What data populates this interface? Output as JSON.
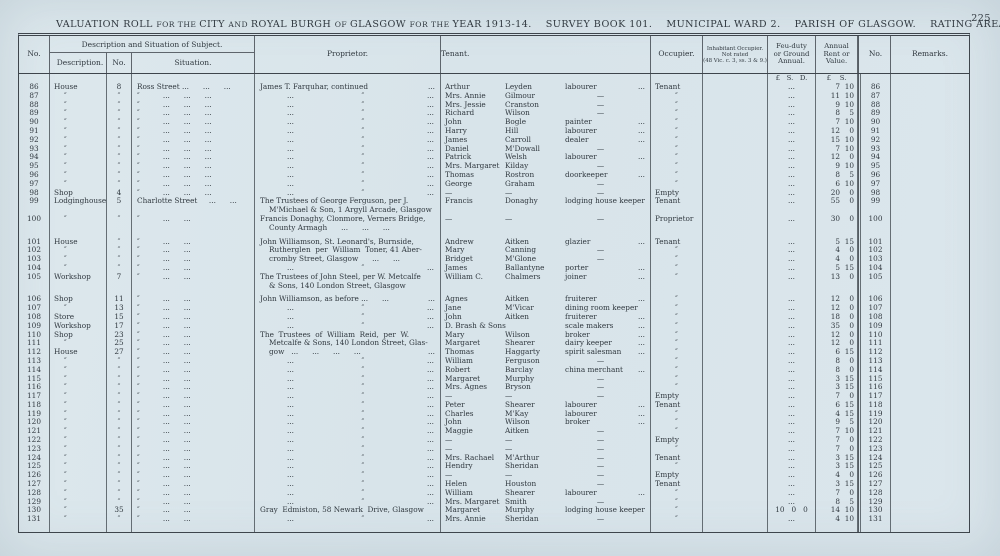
{
  "title": {
    "segments": [
      {
        "t": "VALUATION ROLL "
      },
      {
        "t": "FOR THE ",
        "sm": 1
      },
      {
        "t": "CITY "
      },
      {
        "t": "AND ",
        "sm": 1
      },
      {
        "t": "ROYAL BURGH "
      },
      {
        "t": "OF ",
        "sm": 1
      },
      {
        "t": "GLASGOW "
      },
      {
        "t": "FOR THE ",
        "sm": 1
      },
      {
        "t": "YEAR 1913-14."
      },
      {
        "t": "    SURVEY BOOK 101."
      },
      {
        "t": "    MUNICIPAL WARD 2."
      },
      {
        "t": "    PARISH OF GLASGOW."
      },
      {
        "t": "    RATING AREA—GLASGOW"
      }
    ],
    "page_number": "225"
  },
  "table": {
    "headers": {
      "no_left": "No.",
      "desc_group": "Description and Situation of Subject.",
      "description": "Description.",
      "no_mid": "No.",
      "situation": "Situation.",
      "proprietor": "Proprietor.",
      "tenant": "Tenant.",
      "occupier": "Occupier.",
      "inhabitant": [
        "Inhabitant Occupier.",
        "Not rated",
        "(48 Vic. c. 3, ss. 3 & 9.)"
      ],
      "feu": [
        "Feu-duty",
        "or Ground",
        "Annual."
      ],
      "annual": [
        "Annual",
        "Rent or",
        "Value."
      ],
      "no_right": "No.",
      "remarks": "Remarks."
    },
    "currency_row": {
      "feu": "£   S.   D.",
      "annual": "£    S."
    },
    "ditto": "″",
    "feu_default": "...",
    "prop_ditto": {
      "l": "...",
      "c": "″",
      "r": "..."
    },
    "sit_patterns": {
      "d3": "″          ...      ...      ...",
      "d2": "″          ...      ..."
    },
    "rows": [
      {
        "n": "86",
        "d": "House",
        "dn": "8",
        "s": "Ross Street ...      ...      ...",
        "p": {
          "l": "James T. Farquhar, continued",
          "r": "..."
        },
        "t1": "Arthur",
        "t2": "Leyden",
        "t3": "labourer",
        "t3d": 1,
        "o": "Tenant",
        "vp": "7",
        "vs": "10"
      },
      {
        "n": "87",
        "d": "″",
        "dn": "″",
        "s": "d3",
        "p": "d",
        "t1": "Mrs. Annie",
        "t2": "Gilmour",
        "t3": "—",
        "o": "″",
        "vp": "11",
        "vs": "10"
      },
      {
        "n": "88",
        "d": "″",
        "dn": "″",
        "s": "d3",
        "p": "d",
        "t1": "Mrs. Jessie",
        "t2": "Cranston",
        "t3": "—",
        "o": "″",
        "vp": "9",
        "vs": "10"
      },
      {
        "n": "89",
        "d": "″",
        "dn": "″",
        "s": "d3",
        "p": "d",
        "t1": "Richard",
        "t2": "Wilson",
        "t3": "—",
        "o": "″",
        "vp": "8",
        "vs": "5"
      },
      {
        "n": "90",
        "d": "″",
        "dn": "″",
        "s": "d3",
        "p": "d",
        "t1": "John",
        "t2": "Bogle",
        "t3": "painter",
        "t3d": 1,
        "o": "″",
        "vp": "7",
        "vs": "10"
      },
      {
        "n": "91",
        "d": "″",
        "dn": "″",
        "s": "d3",
        "p": "d",
        "t1": "Harry",
        "t2": "Hill",
        "t3": "labourer",
        "t3d": 1,
        "o": "″",
        "vp": "12",
        "vs": "0"
      },
      {
        "n": "92",
        "d": "″",
        "dn": "″",
        "s": "d3",
        "p": "d",
        "t1": "James",
        "t2": "Carroll",
        "t3": "dealer",
        "t3d": 1,
        "o": "″",
        "vp": "15",
        "vs": "10"
      },
      {
        "n": "93",
        "d": "″",
        "dn": "″",
        "s": "d3",
        "p": "d",
        "t1": "Daniel",
        "t2": "M'Dowall",
        "t3": "—",
        "o": "″",
        "vp": "7",
        "vs": "10"
      },
      {
        "n": "94",
        "d": "″",
        "dn": "″",
        "s": "d3",
        "p": "d",
        "t1": "Patrick",
        "t2": "Welsh",
        "t3": "labourer",
        "t3d": 1,
        "o": "″",
        "vp": "12",
        "vs": "0"
      },
      {
        "n": "95",
        "d": "″",
        "dn": "″",
        "s": "d3",
        "p": "d",
        "t1": "Mrs. Margaret",
        "t2": "Kilday",
        "t3": "—",
        "o": "″",
        "vp": "9",
        "vs": "10"
      },
      {
        "n": "96",
        "d": "″",
        "dn": "″",
        "s": "d3",
        "p": "d",
        "t1": "Thomas",
        "t2": "Rostron",
        "t3": "doorkeeper",
        "t3d": 1,
        "o": "″",
        "vp": "8",
        "vs": "5"
      },
      {
        "n": "97",
        "d": "″",
        "dn": "″",
        "s": "d3",
        "p": "d",
        "t1": "George",
        "t2": "Graham",
        "t3": "—",
        "o": "″",
        "vp": "6",
        "vs": "10"
      },
      {
        "n": "98",
        "d": "Shop",
        "dn": "4",
        "s": "d3",
        "p": "d",
        "t1": "—",
        "t2": "—",
        "t3": "—",
        "o": "Empty",
        "vp": "20",
        "vs": "0"
      },
      {
        "n": "99",
        "d": "Lodginghouse",
        "dn": "5",
        "s": "Charlotte Street     ...      ...",
        "p": [
          {
            "l": "The Trustees of George Ferguson, per J."
          },
          {
            "l": "M'Michael & Son, 1 Argyll Arcade, Glasgow",
            "i": 1
          }
        ],
        "t1": "Francis",
        "t2": "Donaghy",
        "t3": "lodging house keeper",
        "o": "Tenant",
        "vp": "55",
        "vs": "0"
      },
      {
        "n": "100",
        "d": "″",
        "dn": "″",
        "s": "d2",
        "p": [
          {
            "l": "Francis Donaghy, Clonmore, Verners Bridge,"
          },
          {
            "l": "County Armagh      ...      ...      ...",
            "i": 1
          }
        ],
        "t1": "—",
        "t2": "—",
        "t3": "—",
        "o": "Proprietor",
        "vp": "30",
        "vs": "0"
      },
      {
        "n": "101",
        "d": "House",
        "dn": "″",
        "s": "d2",
        "p": {
          "l": "John Williamson, St. Leonard's, Burnside,"
        },
        "t1": "Andrew",
        "t2": "Aitken",
        "t3": "glazier",
        "t3d": 1,
        "o": "Tenant",
        "vp": "5",
        "vs": "15",
        "g": 1
      },
      {
        "n": "102",
        "d": "″",
        "dn": "″",
        "s": "d2",
        "p": {
          "l": "Rutherglen  per  William  Toner, 41 Aber-",
          "i": 1
        },
        "t1": "Mary",
        "t2": "Canning",
        "t3": "—",
        "o": "″",
        "vp": "4",
        "vs": "0"
      },
      {
        "n": "103",
        "d": "″",
        "dn": "″",
        "s": "d2",
        "p": {
          "l": "cromby Street, Glasgow      ...      ...",
          "i": 1
        },
        "t1": "Bridget",
        "t2": "M'Glone",
        "t3": "—",
        "o": "″",
        "vp": "4",
        "vs": "0"
      },
      {
        "n": "104",
        "d": "″",
        "dn": "″",
        "s": "d2",
        "p": "d",
        "t1": "James",
        "t2": "Ballantyne",
        "t3": "porter",
        "t3d": 1,
        "o": "″",
        "vp": "5",
        "vs": "15"
      },
      {
        "n": "105",
        "d": "Workshop",
        "dn": "7",
        "s": "d2",
        "p": [
          {
            "l": "The Trustees of John Steel, per W. Metcalfe"
          },
          {
            "l": "& Sons, 140 London Street, Glasgow",
            "i": 1
          }
        ],
        "t1": "William C.",
        "t2": "Chalmers",
        "t3": "joiner",
        "t3d": 1,
        "o": "″",
        "vp": "13",
        "vs": "0"
      },
      {
        "n": "106",
        "d": "Shop",
        "dn": "11",
        "s": "d2",
        "p": {
          "l": "John Williamson, as before ...      ...",
          "r": "..."
        },
        "t1": "Agnes",
        "t2": "Aitken",
        "t3": "fruiterer",
        "t3d": 1,
        "o": "″",
        "vp": "12",
        "vs": "0",
        "g": 1
      },
      {
        "n": "107",
        "d": "″",
        "dn": "13",
        "s": "d2",
        "p": "d",
        "t1": "Jane",
        "t2": "M'Vicar",
        "t3": "dining room keeper",
        "o": "″",
        "vp": "12",
        "vs": "0"
      },
      {
        "n": "108",
        "d": "Store",
        "dn": "15",
        "s": "d2",
        "p": "d",
        "t1": "John",
        "t2": "Aitken",
        "t3": "fruiterer",
        "t3d": 1,
        "o": "″",
        "vp": "18",
        "vs": "0"
      },
      {
        "n": "109",
        "d": "Workshop",
        "dn": "17",
        "s": "d2",
        "p": "d",
        "t1": "D. Brash & Sons",
        "t2": "",
        "t3": "scale makers",
        "t3d": 1,
        "o": "″",
        "vp": "35",
        "vs": "0"
      },
      {
        "n": "110",
        "d": "Shop",
        "dn": "23",
        "s": "d2",
        "p": {
          "l": "The  Trustees  of  William  Reid,  per  W."
        },
        "t1": "Mary",
        "t2": "Wilson",
        "t3": "broker",
        "t3d": 1,
        "o": "″",
        "vp": "12",
        "vs": "0"
      },
      {
        "n": "111",
        "d": "″",
        "dn": "25",
        "s": "d2",
        "p": {
          "l": "Metcalfe & Sons, 140 London Street, Glas-",
          "i": 1
        },
        "t1": "Margaret",
        "t2": "Shearer",
        "t3": "dairy keeper",
        "t3d": 1,
        "o": "″",
        "vp": "12",
        "vs": "0"
      },
      {
        "n": "112",
        "d": "House",
        "dn": "27",
        "s": "d2",
        "p": {
          "l": "gow   ...      ...      ...      ...",
          "i": 1,
          "r": "..."
        },
        "t1": "Thomas",
        "t2": "Haggarty",
        "t3": "spirit salesman",
        "t3d": 1,
        "o": "″",
        "vp": "6",
        "vs": "15"
      },
      {
        "n": "113",
        "d": "″",
        "dn": "″",
        "s": "d2",
        "p": "d",
        "t1": "William",
        "t2": "Ferguson",
        "t3": "—",
        "o": "″",
        "vp": "8",
        "vs": "0"
      },
      {
        "n": "114",
        "d": "″",
        "dn": "″",
        "s": "d2",
        "p": "d",
        "t1": "Robert",
        "t2": "Barclay",
        "t3": "china merchant",
        "t3d": 1,
        "o": "″",
        "vp": "8",
        "vs": "0"
      },
      {
        "n": "115",
        "d": "″",
        "dn": "″",
        "s": "d2",
        "p": "d",
        "t1": "Margaret",
        "t2": "Murphy",
        "t3": "—",
        "o": "″",
        "vp": "3",
        "vs": "15"
      },
      {
        "n": "116",
        "d": "″",
        "dn": "″",
        "s": "d2",
        "p": "d",
        "t1": "Mrs. Agnes",
        "t2": "Bryson",
        "t3": "—",
        "o": "″",
        "vp": "3",
        "vs": "15"
      },
      {
        "n": "117",
        "d": "″",
        "dn": "″",
        "s": "d2",
        "p": "d",
        "t1": "—",
        "t2": "—",
        "t3": "—",
        "o": "Empty",
        "vp": "7",
        "vs": "0"
      },
      {
        "n": "118",
        "d": "″",
        "dn": "″",
        "s": "d2",
        "p": "d",
        "t1": "Peter",
        "t2": "Shearer",
        "t3": "labourer",
        "t3d": 1,
        "o": "Tenant",
        "vp": "6",
        "vs": "15"
      },
      {
        "n": "119",
        "d": "″",
        "dn": "″",
        "s": "d2",
        "p": "d",
        "t1": "Charles",
        "t2": "M'Kay",
        "t3": "labourer",
        "t3d": 1,
        "o": "″",
        "vp": "4",
        "vs": "15"
      },
      {
        "n": "120",
        "d": "″",
        "dn": "″",
        "s": "d2",
        "p": "d",
        "t1": "John",
        "t2": "Wilson",
        "t3": "broker",
        "t3d": 1,
        "o": "″",
        "vp": "9",
        "vs": "5"
      },
      {
        "n": "121",
        "d": "″",
        "dn": "″",
        "s": "d2",
        "p": "d",
        "t1": "Maggie",
        "t2": "Aitken",
        "t3": "—",
        "o": "″",
        "vp": "7",
        "vs": "10"
      },
      {
        "n": "122",
        "d": "″",
        "dn": "″",
        "s": "d2",
        "p": "d",
        "t1": "—",
        "t2": "—",
        "t3": "—",
        "o": "Empty",
        "vp": "7",
        "vs": "0"
      },
      {
        "n": "123",
        "d": "″",
        "dn": "″",
        "s": "d2",
        "p": "d",
        "t1": "—",
        "t2": "—",
        "t3": "—",
        "o": "″",
        "vp": "7",
        "vs": "0"
      },
      {
        "n": "124",
        "d": "″",
        "dn": "″",
        "s": "d2",
        "p": "d",
        "t1": "Mrs. Rachael",
        "t2": "M'Arthur",
        "t3": "—",
        "o": "Tenant",
        "vp": "3",
        "vs": "15"
      },
      {
        "n": "125",
        "d": "″",
        "dn": "″",
        "s": "d2",
        "p": "d",
        "t1": "Hendry",
        "t2": "Sheridan",
        "t3": "—",
        "o": "″",
        "vp": "3",
        "vs": "15"
      },
      {
        "n": "126",
        "d": "″",
        "dn": "″",
        "s": "d2",
        "p": "d",
        "t1": "—",
        "t2": "—",
        "t3": "—",
        "o": "Empty",
        "vp": "4",
        "vs": "0"
      },
      {
        "n": "127",
        "d": "″",
        "dn": "″",
        "s": "d2",
        "p": "d",
        "t1": "Helen",
        "t2": "Houston",
        "t3": "—",
        "o": "Tenant",
        "vp": "3",
        "vs": "15"
      },
      {
        "n": "128",
        "d": "″",
        "dn": "″",
        "s": "d2",
        "p": "d",
        "t1": "William",
        "t2": "Shearer",
        "t3": "labourer",
        "t3d": 1,
        "o": "″",
        "vp": "7",
        "vs": "0"
      },
      {
        "n": "129",
        "d": "″",
        "dn": "″",
        "s": "d2",
        "p": "d",
        "t1": "Mrs. Margaret",
        "t2": "Smith",
        "t3": "—",
        "o": "″",
        "vp": "8",
        "vs": "5"
      },
      {
        "n": "130",
        "d": "″",
        "dn": "35",
        "s": "d2",
        "p": {
          "l": "Gray  Edmiston, 58 Newark  Drive, Glasgow"
        },
        "t1": "Margaret",
        "t2": "Murphy",
        "t3": "lodging house keeper",
        "o": "″",
        "f": "10   0   0",
        "vp": "14",
        "vs": "10"
      },
      {
        "n": "131",
        "d": "″",
        "dn": "″",
        "s": "d2",
        "p": "d",
        "t1": "Mrs. Annie",
        "t2": "Sheridan",
        "t3": "—",
        "o": "″",
        "vp": "4",
        "vs": "10"
      }
    ]
  }
}
